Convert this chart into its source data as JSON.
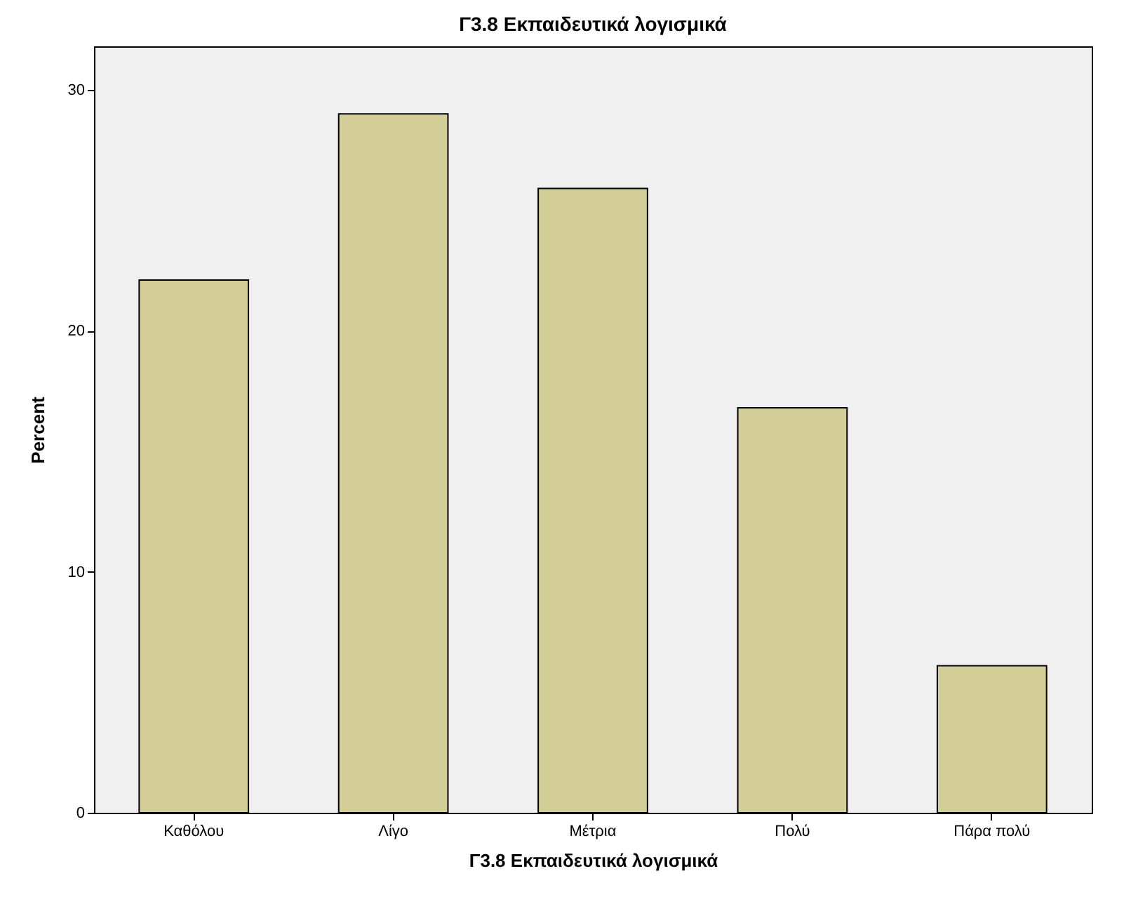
{
  "chart_data": {
    "type": "bar",
    "title": "Γ3.8 Εκπαιδευτικά λογισμικά",
    "xlabel": "Γ3.8 Εκπαιδευτικά λογισμικά",
    "ylabel": "Percent",
    "categories": [
      "Καθόλου",
      "Λίγο",
      "Μέτρια",
      "Πολύ",
      "Πάρα πολύ"
    ],
    "values": [
      22.1,
      29.0,
      25.9,
      16.8,
      6.1
    ],
    "color": "#d3ce97",
    "ylim": [
      0,
      31.8
    ],
    "yticks": [
      0,
      10,
      20,
      30
    ],
    "grid": false
  }
}
